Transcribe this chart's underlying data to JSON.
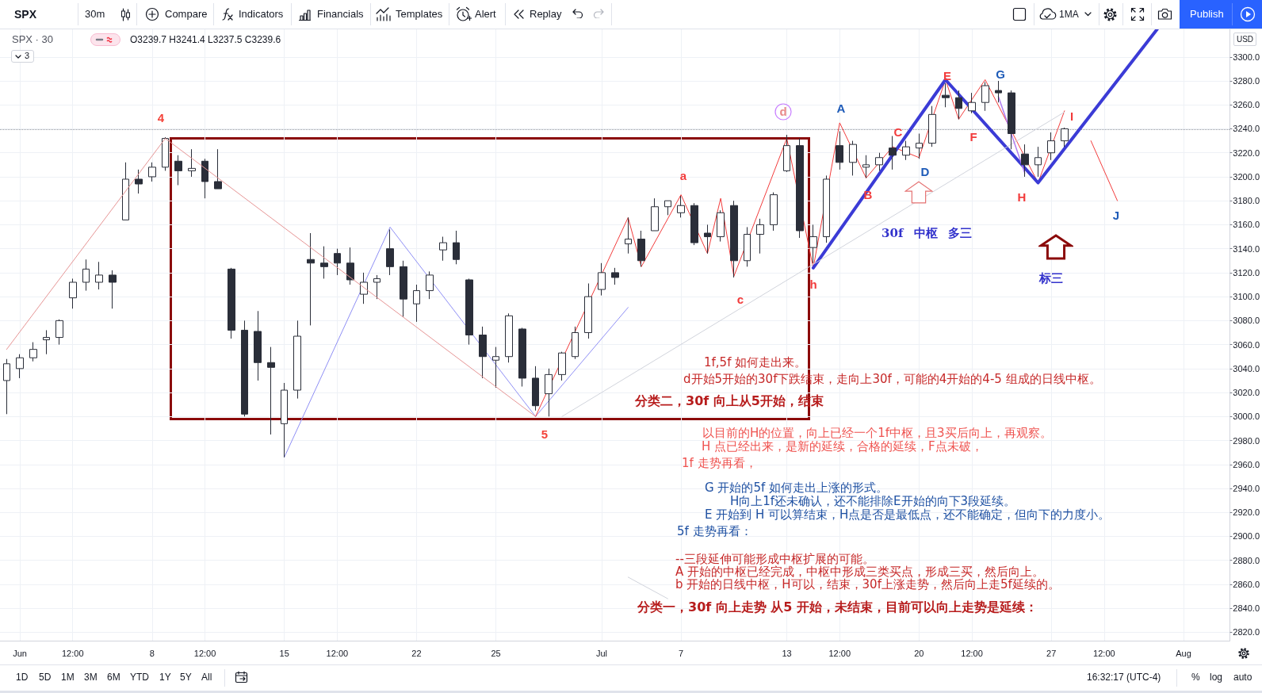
{
  "chart_data": {
    "type": "candlestick",
    "title": "SPX · 30",
    "subtitle": "O3239.7 H3241.4 L3237.5 C3239.6",
    "ylabel": "USD",
    "categories": [
      null,
      "Jun",
      null,
      null,
      null,
      "12:00",
      null,
      null,
      null,
      null,
      null,
      "8",
      null,
      null,
      null,
      "12:00",
      null,
      null,
      null,
      null,
      null,
      "15",
      null,
      null,
      null,
      "12:00",
      null,
      null,
      null,
      null,
      null,
      "22",
      null,
      null,
      null,
      null,
      null,
      "25",
      null,
      null,
      null,
      null,
      null,
      null,
      null,
      "Jul",
      null,
      null,
      null,
      null,
      null,
      "7",
      null,
      null,
      null,
      null,
      null,
      null,
      null,
      "13",
      null,
      null,
      null,
      "12:00",
      null,
      null,
      null,
      null,
      null,
      "20",
      null,
      null,
      null,
      "12:00",
      null,
      null,
      null,
      null,
      null,
      "27",
      null,
      null,
      null,
      "12:00",
      null,
      null,
      null,
      null,
      null,
      "Aug",
      null,
      null,
      null
    ],
    "ylim": [
      2813,
      3323
    ],
    "yticks": [
      {
        "value": 2820,
        "label": "2820.0"
      },
      {
        "value": 2840,
        "label": "2840.0"
      },
      {
        "value": 2860,
        "label": "2860.0"
      },
      {
        "value": 2880,
        "label": "2880.0"
      },
      {
        "value": 2900,
        "label": "2900.0"
      },
      {
        "value": 2920,
        "label": "2920.0"
      },
      {
        "value": 2940,
        "label": "2940.0"
      },
      {
        "value": 2960,
        "label": "2960.0"
      },
      {
        "value": 2980,
        "label": "2980.0"
      },
      {
        "value": 3000,
        "label": "3000.0"
      },
      {
        "value": 3020,
        "label": "3020.0"
      },
      {
        "value": 3040,
        "label": "3040.0"
      },
      {
        "value": 3060,
        "label": "3060.0"
      },
      {
        "value": 3080,
        "label": "3080.0"
      },
      {
        "value": 3100,
        "label": "3100.0"
      },
      {
        "value": 3120,
        "label": "3120.0"
      },
      {
        "value": 3140,
        "label": "3140.0"
      },
      {
        "value": 3160,
        "label": "3160.0"
      },
      {
        "value": 3180,
        "label": "3180.0"
      },
      {
        "value": 3200,
        "label": "3200.0"
      },
      {
        "value": 3220,
        "label": "3220.0"
      },
      {
        "value": 3240,
        "label": "3240.0"
      },
      {
        "value": 3260,
        "label": "3260.0"
      },
      {
        "value": 3280,
        "label": "3280.0"
      },
      {
        "value": 3300,
        "label": "3300.0"
      }
    ],
    "grid": true,
    "ref_lines": [
      {
        "axis": "y",
        "value": 3239.6,
        "line_style": "dotted",
        "color": "#9598a1"
      }
    ],
    "series": [
      {
        "color": "#2a2e39",
        "ohlc": [
          [
            3030,
            3048,
            3002,
            3044
          ],
          [
            3040,
            3052,
            3032,
            3049
          ],
          [
            3049,
            3062,
            3046,
            3056
          ],
          [
            3064,
            3072,
            3052,
            3066
          ],
          [
            3066,
            3081,
            3060,
            3080
          ],
          [
            3099,
            3115,
            3090,
            3112
          ],
          [
            3112,
            3131,
            3105,
            3123
          ],
          [
            3112,
            3129,
            3106,
            3118
          ],
          [
            3118,
            3122,
            3090,
            3112
          ],
          [
            3164,
            3212,
            3164,
            3198
          ],
          [
            3198,
            3206,
            3186,
            3194
          ],
          [
            3200,
            3212,
            3196,
            3208
          ],
          [
            3208,
            3233,
            3205,
            3232
          ],
          [
            3213,
            3218,
            3193,
            3205
          ],
          [
            3205,
            3223,
            3200,
            3207
          ],
          [
            3213,
            3215,
            3182,
            3196
          ],
          [
            3196,
            3223,
            3190,
            3190
          ],
          [
            3123,
            3124,
            3065,
            3072
          ],
          [
            3072,
            3080,
            3000,
            3002
          ],
          [
            3071,
            3088,
            3030,
            3045
          ],
          [
            3045,
            3058,
            2985,
            3041
          ],
          [
            2994,
            3028,
            2966,
            3022
          ],
          [
            3022,
            3080,
            3015,
            3067
          ],
          [
            3131,
            3153,
            3076,
            3128
          ],
          [
            3128,
            3142,
            3115,
            3125
          ],
          [
            3136,
            3140,
            3118,
            3128
          ],
          [
            3128,
            3141,
            3110,
            3114
          ],
          [
            3102,
            3120,
            3094,
            3112
          ],
          [
            3112,
            3118,
            3098,
            3115
          ],
          [
            3140,
            3156,
            3118,
            3125
          ],
          [
            3125,
            3130,
            3083,
            3098
          ],
          [
            3094,
            3110,
            3079,
            3105
          ],
          [
            3105,
            3121,
            3098,
            3118
          ],
          [
            3139,
            3150,
            3130,
            3145
          ],
          [
            3145,
            3155,
            3127,
            3131
          ],
          [
            3114,
            3115,
            3060,
            3068
          ],
          [
            3068,
            3075,
            3032,
            3050
          ],
          [
            3047,
            3058,
            3024,
            3050
          ],
          [
            3050,
            3086,
            3045,
            3084
          ],
          [
            3073,
            3074,
            3025,
            3032
          ],
          [
            3032,
            3042,
            3005,
            3009
          ],
          [
            3019,
            3040,
            3000,
            3035
          ],
          [
            3035,
            3054,
            3030,
            3053
          ],
          [
            3050,
            3075,
            3048,
            3070
          ],
          [
            3070,
            3111,
            3065,
            3100
          ],
          [
            3106,
            3128,
            3101,
            3120
          ],
          [
            3120,
            3124,
            3110,
            3116
          ],
          [
            3144,
            3166,
            3136,
            3148
          ],
          [
            3148,
            3155,
            3125,
            3130
          ],
          [
            3155,
            3182,
            3155,
            3175
          ],
          [
            3175,
            3180,
            3168,
            3180
          ],
          [
            3170,
            3184,
            3166,
            3176
          ],
          [
            3176,
            3178,
            3143,
            3145
          ],
          [
            3153,
            3160,
            3136,
            3150
          ],
          [
            3150,
            3172,
            3146,
            3170
          ],
          [
            3176,
            3180,
            3116,
            3130
          ],
          [
            3130,
            3158,
            3125,
            3152
          ],
          [
            3152,
            3165,
            3136,
            3160
          ],
          [
            3160,
            3187,
            3155,
            3185
          ],
          [
            3205,
            3235,
            3204,
            3226
          ],
          [
            3226,
            3232,
            3149,
            3155
          ],
          [
            3141,
            3160,
            3128,
            3150
          ],
          [
            3150,
            3201,
            3145,
            3198
          ],
          [
            3226,
            3238,
            3206,
            3212
          ],
          [
            3212,
            3230,
            3201,
            3227
          ],
          [
            3208,
            3218,
            3199,
            3210
          ],
          [
            3210,
            3220,
            3205,
            3216
          ],
          [
            3224,
            3234,
            3206,
            3218
          ],
          [
            3218,
            3230,
            3214,
            3225
          ],
          [
            3224,
            3236,
            3215,
            3228
          ],
          [
            3228,
            3259,
            3225,
            3252
          ],
          [
            3268,
            3278,
            3258,
            3266
          ],
          [
            3266,
            3272,
            3248,
            3257
          ],
          [
            3255,
            3270,
            3253,
            3262
          ],
          [
            3262,
            3279,
            3255,
            3276
          ],
          [
            3272,
            3280,
            3262,
            3270
          ],
          [
            3270,
            3272,
            3223,
            3236
          ],
          [
            3219,
            3227,
            3200,
            3210
          ],
          [
            3210,
            3225,
            3200,
            3216
          ],
          [
            3220,
            3237,
            3214,
            3230
          ],
          [
            3230,
            3241,
            3225,
            3240
          ],
          null,
          null,
          null,
          null,
          null,
          null,
          null,
          null,
          null,
          null,
          null,
          null
        ]
      },
      {
        "type": "line",
        "color": "#e69595",
        "values": [
          3056,
          null,
          null,
          null,
          null,
          null,
          null,
          null,
          null,
          null,
          null,
          null,
          3232,
          null,
          null,
          null,
          null,
          null,
          null,
          null,
          null,
          null,
          null,
          null,
          null,
          null,
          null,
          null,
          null,
          null,
          null,
          null,
          null,
          null,
          null,
          null,
          null,
          null,
          null,
          null,
          3000,
          null,
          null,
          null,
          null,
          null,
          null,
          null,
          null,
          null,
          null,
          null,
          null,
          null,
          null,
          null,
          null,
          null,
          null,
          null,
          null,
          null,
          null,
          null,
          null,
          null,
          null,
          null,
          null,
          null,
          null,
          null,
          null,
          null,
          null,
          null,
          null,
          null,
          null,
          null,
          null,
          null,
          null,
          null,
          null,
          null,
          null,
          null,
          null,
          null,
          null,
          null,
          null
        ]
      },
      {
        "type": "line",
        "color": "#8f8ff5",
        "values": [
          null,
          null,
          null,
          null,
          null,
          null,
          null,
          null,
          null,
          null,
          null,
          null,
          null,
          null,
          null,
          null,
          null,
          null,
          null,
          null,
          null,
          2966,
          null,
          null,
          null,
          null,
          null,
          null,
          null,
          3158,
          null,
          null,
          null,
          null,
          null,
          null,
          null,
          null,
          null,
          null,
          3000,
          null,
          null,
          null,
          null,
          null,
          null,
          3091,
          null,
          null,
          null,
          null,
          null,
          null,
          null,
          null,
          null,
          null,
          null,
          null,
          null,
          null,
          null,
          null,
          null,
          null,
          null,
          null,
          null,
          null,
          null,
          null,
          null,
          null,
          null,
          null,
          null,
          null,
          null,
          null,
          null,
          null,
          null,
          null,
          null,
          null,
          null,
          null,
          null,
          null,
          null,
          null,
          null
        ]
      },
      {
        "type": "line",
        "color": "#f23c3c",
        "values": [
          null,
          null,
          null,
          null,
          null,
          null,
          null,
          null,
          null,
          null,
          null,
          null,
          null,
          null,
          null,
          null,
          null,
          null,
          null,
          null,
          null,
          null,
          null,
          null,
          null,
          null,
          null,
          null,
          null,
          null,
          null,
          null,
          null,
          null,
          null,
          null,
          null,
          null,
          null,
          null,
          3000,
          null,
          null,
          null,
          null,
          null,
          null,
          3166,
          3125,
          null,
          null,
          3185,
          null,
          3136,
          3182,
          3117,
          null,
          null,
          null,
          3232,
          null,
          3124,
          null,
          3245,
          null,
          3199,
          null,
          3225,
          null,
          3216,
          null,
          3281,
          3248,
          null,
          3281,
          null,
          null,
          null,
          3195,
          null,
          3255,
          null,
          null,
          null,
          null,
          null,
          null,
          null,
          null,
          null,
          null,
          null,
          null
        ]
      },
      {
        "type": "line",
        "color": "#f23c3c",
        "values": [
          null,
          null,
          null,
          null,
          null,
          null,
          null,
          null,
          null,
          null,
          null,
          null,
          null,
          null,
          null,
          null,
          null,
          null,
          null,
          null,
          null,
          null,
          null,
          null,
          null,
          null,
          null,
          null,
          null,
          null,
          null,
          null,
          null,
          null,
          null,
          null,
          null,
          null,
          null,
          null,
          null,
          null,
          null,
          null,
          null,
          null,
          null,
          null,
          null,
          null,
          null,
          null,
          null,
          null,
          null,
          null,
          null,
          null,
          null,
          null,
          null,
          null,
          null,
          null,
          null,
          null,
          null,
          null,
          null,
          null,
          null,
          null,
          null,
          null,
          null,
          null,
          null,
          null,
          null,
          null,
          null,
          null,
          3230,
          null,
          3180,
          null,
          null,
          null,
          null,
          null,
          null,
          null,
          null
        ]
      },
      {
        "type": "line",
        "color": "#3b3bd6",
        "values": [
          null,
          null,
          null,
          null,
          null,
          null,
          null,
          null,
          null,
          null,
          null,
          null,
          null,
          null,
          null,
          null,
          null,
          null,
          null,
          null,
          null,
          null,
          null,
          null,
          null,
          null,
          null,
          null,
          null,
          null,
          null,
          null,
          null,
          null,
          null,
          null,
          null,
          null,
          null,
          null,
          null,
          null,
          null,
          null,
          null,
          null,
          null,
          null,
          null,
          null,
          null,
          null,
          null,
          null,
          null,
          null,
          null,
          null,
          null,
          null,
          null,
          3124,
          null,
          null,
          null,
          null,
          null,
          null,
          null,
          null,
          null,
          3281,
          null,
          null,
          null,
          null,
          null,
          null,
          3195,
          null,
          null,
          null,
          null,
          null,
          null,
          null,
          null,
          3323,
          null,
          null,
          null,
          null,
          null
        ]
      },
      {
        "type": "line",
        "color": "#d1d4dc",
        "values": [
          null,
          null,
          null,
          null,
          null,
          null,
          null,
          null,
          null,
          null,
          null,
          null,
          null,
          null,
          null,
          null,
          null,
          null,
          null,
          null,
          null,
          null,
          null,
          null,
          null,
          null,
          null,
          null,
          null,
          null,
          null,
          null,
          null,
          null,
          null,
          null,
          null,
          null,
          null,
          null,
          null,
          null,
          3000,
          null,
          null,
          null,
          null,
          null,
          null,
          null,
          null,
          null,
          null,
          null,
          null,
          null,
          null,
          null,
          null,
          null,
          null,
          null,
          null,
          null,
          null,
          null,
          null,
          null,
          null,
          null,
          null,
          null,
          null,
          null,
          null,
          null,
          null,
          null,
          null,
          null,
          3254,
          null,
          null,
          null,
          null,
          null,
          null,
          null,
          null,
          null,
          null,
          null,
          null
        ]
      },
      {
        "type": "line",
        "color": "#d1d4dc",
        "values": [
          null,
          null,
          null,
          null,
          null,
          null,
          null,
          null,
          null,
          null,
          null,
          null,
          null,
          null,
          null,
          null,
          null,
          null,
          null,
          null,
          null,
          null,
          null,
          null,
          null,
          null,
          null,
          null,
          null,
          null,
          null,
          null,
          null,
          null,
          null,
          null,
          null,
          null,
          null,
          null,
          null,
          null,
          null,
          null,
          null,
          null,
          null,
          2866,
          null,
          null,
          2848,
          null,
          null,
          null,
          null,
          null,
          null,
          null,
          null,
          null,
          null,
          null,
          null,
          null,
          null,
          null,
          null,
          null,
          null,
          null,
          null,
          null,
          null,
          null,
          null,
          null,
          null,
          null,
          null,
          null,
          null,
          null,
          null,
          null,
          null,
          null,
          null,
          null,
          null,
          null,
          null,
          null,
          null
        ]
      },
      {
        "type": "line",
        "color": "#b07cf0",
        "values": [
          null,
          null,
          null,
          null,
          null,
          null,
          null,
          null,
          null,
          null,
          null,
          null,
          null,
          null,
          null,
          null,
          null,
          null,
          null,
          null,
          null,
          null,
          null,
          null,
          null,
          null,
          null,
          null,
          null,
          null,
          null,
          null,
          null,
          null,
          null,
          null,
          null,
          null,
          null,
          null,
          null,
          null,
          null,
          null,
          null,
          null,
          null,
          null,
          null,
          null,
          null,
          null,
          null,
          null,
          null,
          null,
          null,
          null,
          null,
          null,
          null,
          null,
          null,
          null,
          null,
          null,
          null,
          null,
          null,
          null,
          null,
          null,
          null,
          null,
          null,
          3267,
          null,
          3203,
          null,
          null,
          null,
          null,
          null,
          null,
          null,
          null,
          null,
          null,
          null,
          null,
          null,
          null,
          null
        ]
      }
    ],
    "annotations": [
      "SPX",
      "30m",
      "Compare",
      "Indicators",
      "Financials",
      "Templates",
      "Alert",
      "Replay",
      "1MA",
      "Publish",
      "3",
      "1D",
      "5D",
      "1M",
      "3M",
      "6M",
      "YTD",
      "1Y",
      "5Y",
      "All",
      "16:32:17 (UTC-4)",
      "%",
      "log",
      "auto",
      "4",
      "5",
      "a",
      "c",
      "d",
      "h",
      "A",
      "B",
      "C",
      "D",
      "E",
      "F",
      "G",
      "H",
      "I",
      "J",
      "30f 中枢 多三",
      "标三",
      "分类二，30f 向上从5开始，结束",
      "d开始5开始的30f下跌结束，走向上30f，可能的4开始的4-5 组成的日线中枢。",
      "1f,5f 如何走出来。",
      "1f 走势再看，",
      "H 点已经出来，是新的延续，合格的延续，F点未破，",
      "以目前的H的位置，向上已经一个1f中枢，且3买后向上，再观察。",
      "5f 走势再看：",
      "E 开始到 H 可以算结束，H点是否是最低点，还不能确定，但向下的力度小。",
      "H向上1f还未确认，还不能排除E开始的向下3段延续。",
      "G 开始的5f 如何走出上涨的形式。",
      "分类一，30f 向上走势 从5 开始，未结束，目前可以向上走势是延续：",
      "b 开始的日线中枢，H可以，结束，30f上涨走势，然后向上走5f延续的。",
      "A 开始的中枢已经完成，中枢中形成三类买点，形成三买，然后向上。",
      "--三段延伸可能形成中枢扩展的可能。"
    ]
  }
}
